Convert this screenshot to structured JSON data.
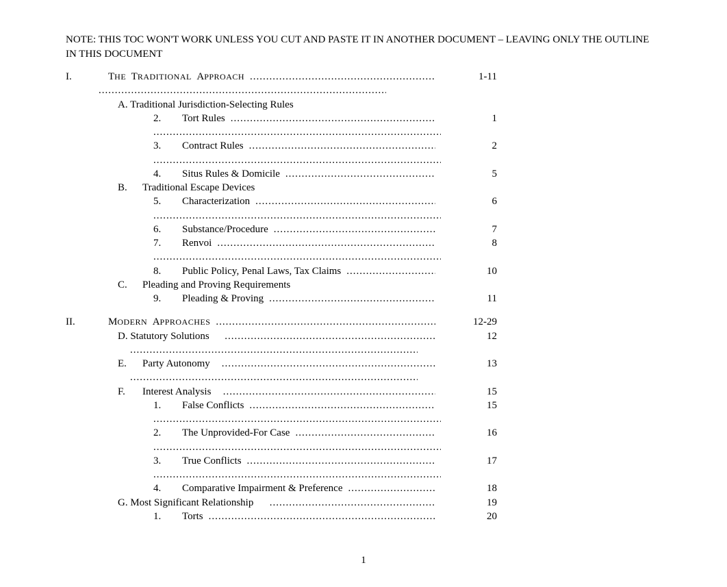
{
  "note": "NOTE: THIS TOC WON'T WORK UNLESS YOU CUT AND PASTE IT IN ANOTHER DOCUMENT – LEAVING ONLY THE OUTLINE IN THIS DOCUMENT",
  "page_number": "1",
  "dot_char": ".",
  "sections": {
    "s1": {
      "marker": "I.",
      "title_words": [
        [
          "T",
          "HE"
        ],
        [
          "T",
          "RADITIONAL"
        ],
        [
          "A",
          "PPROACH"
        ]
      ],
      "page": "1-11"
    },
    "s1_a": {
      "label": "A.",
      "title": "Traditional Jurisdiction-Selecting Rules"
    },
    "s1_a_2": {
      "marker": "2.",
      "title": "Tort Rules",
      "page": "1"
    },
    "s1_a_3": {
      "marker": "3.",
      "title": "Contract Rules",
      "page": "2"
    },
    "s1_a_4": {
      "marker": "4.",
      "title": "Situs Rules & Domicile",
      "page": "5"
    },
    "s1_b": {
      "label": "B.",
      "title": "Traditional Escape Devices"
    },
    "s1_b_5": {
      "marker": "5.",
      "title": "Characterization",
      "page": "6"
    },
    "s1_b_6": {
      "marker": "6.",
      "title": "Substance/Procedure",
      "page": "7"
    },
    "s1_b_7": {
      "marker": "7.",
      "title": "Renvoi",
      "page": "8"
    },
    "s1_b_8": {
      "marker": "8.",
      "title": "Public Policy, Penal Laws, Tax Claims",
      "page": "10"
    },
    "s1_c": {
      "label": "C.",
      "title": "Pleading and Proving Requirements"
    },
    "s1_c_9": {
      "marker": "9.",
      "title": "Pleading & Proving",
      "page": "11"
    },
    "s2": {
      "marker": "II.",
      "title_words": [
        [
          "M",
          "ODERN"
        ],
        [
          "A",
          "PPROACHES"
        ]
      ],
      "page": "12-29"
    },
    "s2_d": {
      "label": "D.",
      "title": "Statutory Solutions",
      "page": "12"
    },
    "s2_e": {
      "label": "E.",
      "title": "Party Autonomy",
      "page": "13"
    },
    "s2_f": {
      "label": "F.",
      "title": "Interest Analysis",
      "page": "15"
    },
    "s2_f_1": {
      "marker": "1.",
      "title": "False Conflicts",
      "page": "15"
    },
    "s2_f_2": {
      "marker": "2.",
      "title": "The Unprovided-For Case",
      "page": "16"
    },
    "s2_f_3": {
      "marker": "3.",
      "title": "True Conflicts",
      "page": "17"
    },
    "s2_f_4": {
      "marker": "4.",
      "title": "Comparative Impairment & Preference",
      "page": "18"
    },
    "s2_g": {
      "label": "G.",
      "title": "Most Significant Relationship",
      "page": "19"
    },
    "s2_g_1": {
      "marker": "1.",
      "title": "Torts",
      "page": "20"
    }
  }
}
